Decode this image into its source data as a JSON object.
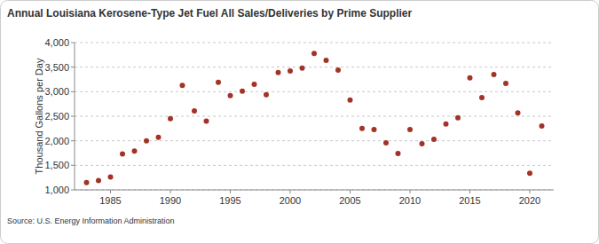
{
  "chart_data": {
    "type": "scatter",
    "title": "Annual Louisiana Kerosene-Type Jet Fuel All Sales/Deliveries by Prime Supplier",
    "y_label": "Thousand Gallons per Day",
    "source": "Source: U.S. Energy Information Administration",
    "x": [
      1983,
      1984,
      1985,
      1986,
      1987,
      1988,
      1989,
      1990,
      1991,
      1992,
      1993,
      1994,
      1995,
      1996,
      1997,
      1998,
      1999,
      2000,
      2001,
      2002,
      2003,
      2004,
      2005,
      2006,
      2007,
      2008,
      2009,
      2010,
      2011,
      2012,
      2013,
      2014,
      2015,
      2016,
      2017,
      2018,
      2019,
      2020,
      2021
    ],
    "series": [
      {
        "name": "Louisiana Kerosene-Type Jet Fuel All Sales/Deliveries by Prime Supplier",
        "color": "#a33327",
        "marker": "circle",
        "values": [
          1150,
          1190,
          1260,
          1730,
          1790,
          2000,
          2070,
          2450,
          3130,
          2610,
          2400,
          3190,
          2920,
          3010,
          3150,
          2940,
          3390,
          3420,
          3480,
          3780,
          3640,
          3440,
          2830,
          2250,
          2230,
          1960,
          1740,
          2230,
          1940,
          2030,
          2340,
          2470,
          3280,
          2880,
          3350,
          3170,
          2570,
          1340,
          2300
        ]
      }
    ],
    "xlim": [
      1982,
      2022
    ],
    "xticks": [
      1985,
      1990,
      1995,
      2000,
      2005,
      2010,
      2015,
      2020
    ],
    "ylim": [
      1000,
      4000
    ],
    "yticks": [
      {
        "value": 1000,
        "label": "1,000"
      },
      {
        "value": 1500,
        "label": "1,500"
      },
      {
        "value": 2000,
        "label": "2,000"
      },
      {
        "value": 2500,
        "label": "2,500"
      },
      {
        "value": 3000,
        "label": "3,000"
      },
      {
        "value": 3500,
        "label": "3,500"
      },
      {
        "value": 4000,
        "label": "4,000"
      }
    ],
    "grid": true
  }
}
